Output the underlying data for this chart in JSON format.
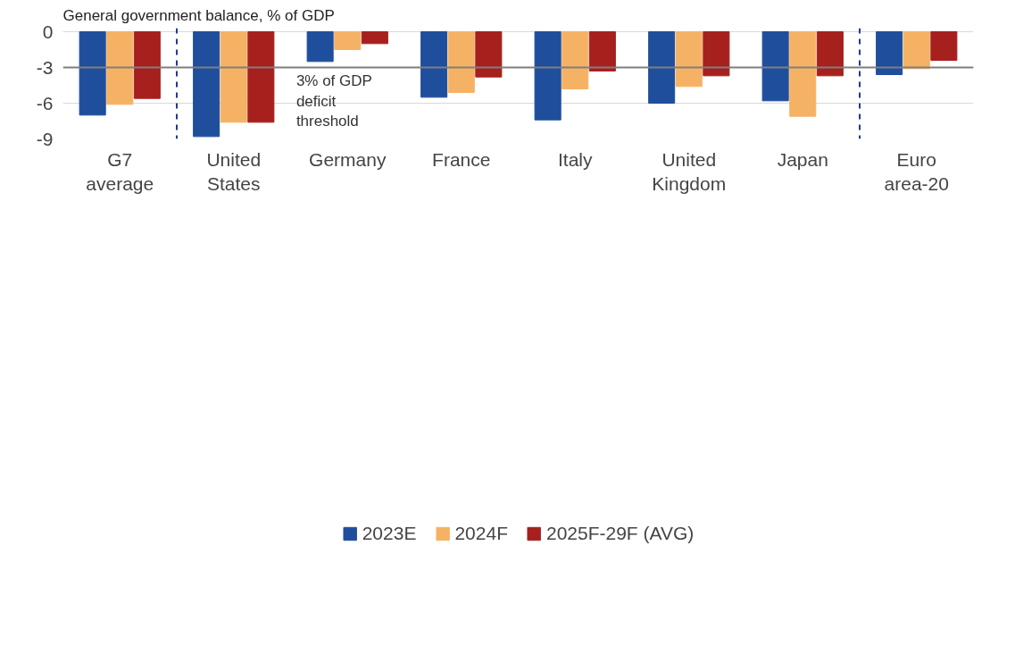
{
  "chart_data": {
    "type": "bar",
    "title": "General government balance, % of GDP",
    "categories": [
      "G7\naverage",
      "United\nStates",
      "Germany",
      "France",
      "Italy",
      "United\nKingdom",
      "Japan",
      "Euro\narea-20"
    ],
    "series": [
      {
        "name": "2023E",
        "color": "#1f4e9c",
        "values": [
          -7.0,
          -8.8,
          -2.5,
          -5.5,
          -7.4,
          -6.0,
          -5.8,
          -3.6
        ]
      },
      {
        "name": "2024F",
        "color": "#f5b265",
        "values": [
          -6.1,
          -7.6,
          -1.5,
          -5.1,
          -4.8,
          -4.6,
          -7.1,
          -3.1
        ]
      },
      {
        "name": "2025F-29F (AVG)",
        "color": "#a6201e",
        "values": [
          -5.6,
          -7.6,
          -1.0,
          -3.8,
          -3.3,
          -3.7,
          -3.7,
          -2.4
        ]
      }
    ],
    "ylim": [
      -9,
      0.3
    ],
    "yticks": [
      0,
      -3,
      -6,
      -9
    ],
    "grid": "y",
    "legend": "bottom",
    "ref_lines": [
      {
        "axis": "y",
        "value": -3,
        "label": "3% of GDP\ndeficit\nthreshold",
        "color": "#7f7f7f",
        "line_style": "solid"
      }
    ]
  }
}
